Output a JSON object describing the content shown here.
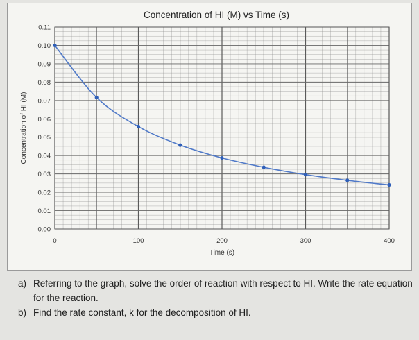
{
  "chart_data": {
    "type": "line",
    "title": "Concentration of HI (M) vs Time (s)",
    "xlabel": "Time (s)",
    "ylabel": "Concentration of HI (M)",
    "xlim": [
      0,
      400
    ],
    "ylim": [
      0,
      0.11
    ],
    "x_ticks": [
      "0",
      "100",
      "200",
      "300",
      "400"
    ],
    "y_ticks": [
      "0.00",
      "0.01",
      "0.02",
      "0.03",
      "0.04",
      "0.05",
      "0.06",
      "0.07",
      "0.08",
      "0.09",
      "0.10",
      "0.11"
    ],
    "grid": true,
    "series": [
      {
        "x": [
          0,
          50,
          100,
          150,
          200,
          250,
          300,
          350,
          400
        ],
        "values": [
          0.1,
          0.0716,
          0.0558,
          0.0457,
          0.0387,
          0.0336,
          0.0296,
          0.0265,
          0.024
        ]
      }
    ],
    "colors": {
      "line": "#4f79c8",
      "marker": "#2f5fb8",
      "grid": "#8c8c8c"
    }
  },
  "questions": [
    {
      "marker": "a)",
      "text": "Referring to the graph, solve the order of reaction with respect to HI. Write the rate equation for the reaction."
    },
    {
      "marker": "b)",
      "text": "Find the rate constant, k for the decomposition of HI."
    }
  ]
}
